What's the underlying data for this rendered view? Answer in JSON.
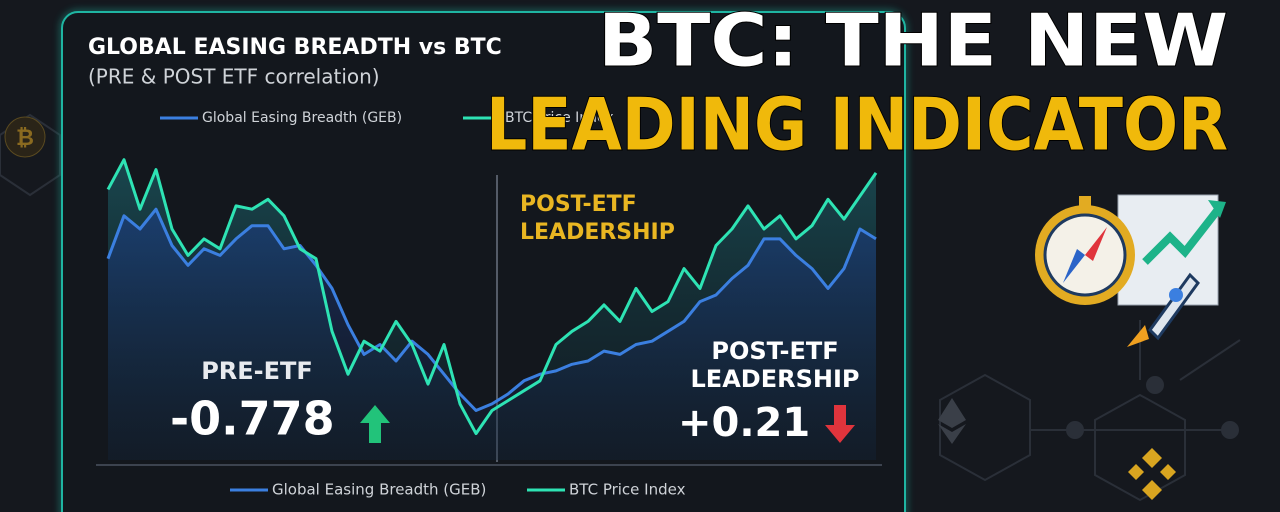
{
  "headline": [
    "BTC: THE NEW",
    "LEADING INDICATOR"
  ],
  "chart_data": {
    "type": "line",
    "title": "GLOBAL EASING BREADTH vs BTC",
    "subtitle": "(PRE & POST ETF correlation)",
    "categories": [
      null,
      null,
      null,
      null,
      null,
      null,
      null,
      null,
      null,
      null,
      null,
      null,
      null,
      null,
      null,
      null,
      null,
      null,
      null,
      null,
      null,
      null,
      null,
      null,
      null,
      null,
      null,
      null,
      null,
      null,
      null,
      null,
      null,
      null,
      null,
      null,
      null,
      null,
      null,
      null,
      null,
      null,
      null,
      null,
      null,
      null,
      null,
      null,
      null
    ],
    "ylim": [
      0,
      100
    ],
    "series": [
      {
        "name": "Global Easing Breadth (GEB)",
        "color": "#3b7fe0",
        "values": [
          61,
          74,
          70,
          76,
          65,
          59,
          64,
          62,
          67,
          71,
          71,
          64,
          65,
          59,
          52,
          41,
          32,
          35,
          30,
          36,
          32,
          26,
          20,
          15,
          17,
          20,
          24,
          26,
          27,
          29,
          30,
          33,
          32,
          35,
          36,
          39,
          42,
          48,
          50,
          55,
          59,
          67,
          67,
          62,
          58,
          52,
          58,
          70,
          67
        ]
      },
      {
        "name": "BTC Price Index",
        "color": "#2ee3b4",
        "values": [
          82,
          91,
          76,
          88,
          70,
          62,
          67,
          64,
          77,
          76,
          79,
          74,
          64,
          61,
          39,
          26,
          36,
          33,
          42,
          35,
          23,
          35,
          17,
          8,
          15,
          18,
          21,
          24,
          35,
          39,
          42,
          47,
          42,
          52,
          45,
          48,
          58,
          52,
          65,
          70,
          77,
          70,
          74,
          67,
          71,
          79,
          73,
          80,
          87
        ]
      }
    ],
    "annotations": [
      {
        "lines": [
          "POST-ETF",
          "LEADERSHIP"
        ]
      },
      {
        "lines": [
          "PRE-ETF"
        ],
        "value": -0.778
      },
      {
        "lines": [
          "POST-ETF",
          "LEADERSHIP"
        ],
        "value": {
          "value": 0.21,
          "label": "+0.21"
        }
      }
    ]
  }
}
